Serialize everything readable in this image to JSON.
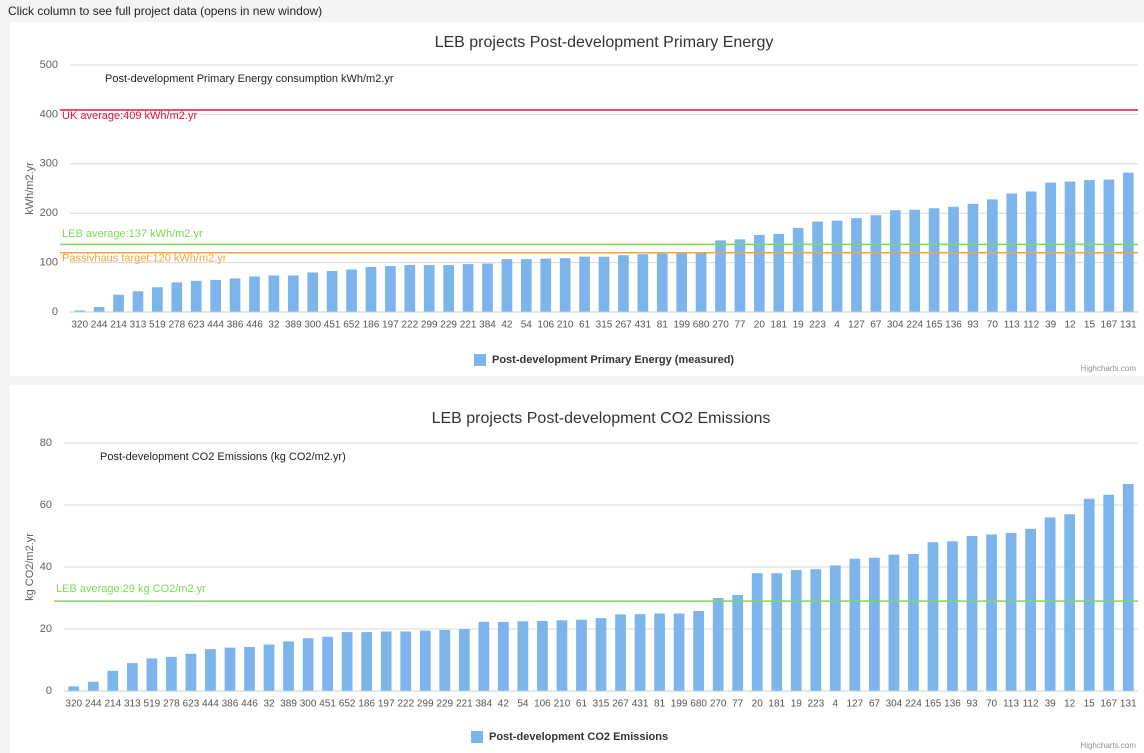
{
  "header": "Click column to see full project data (opens in new window)",
  "chart_data": [
    {
      "type": "bar",
      "title": "LEB projects Post-development Primary Energy",
      "subtitle": "Post-development Primary Energy consumption kWh/m2.yr",
      "y_label": "kWh/m2.yr",
      "credits": "Highcharts.com",
      "categories": [
        "320",
        "244",
        "214",
        "313",
        "519",
        "278",
        "623",
        "444",
        "386",
        "446",
        "32",
        "389",
        "300",
        "451",
        "652",
        "186",
        "197",
        "222",
        "299",
        "229",
        "221",
        "384",
        "42",
        "54",
        "106",
        "210",
        "61",
        "315",
        "267",
        "431",
        "81",
        "199",
        "680",
        "270",
        "77",
        "20",
        "181",
        "19",
        "223",
        "4",
        "127",
        "67",
        "304",
        "224",
        "165",
        "136",
        "93",
        "70",
        "113",
        "112",
        "39",
        "12",
        "15",
        "167",
        "131"
      ],
      "series": [
        {
          "name": "Post-development Primary Energy (measured)",
          "color": "#7cb5ec",
          "values": [
            3,
            10,
            35,
            42,
            50,
            60,
            63,
            65,
            68,
            72,
            74,
            74,
            80,
            83,
            86,
            91,
            93,
            95,
            95,
            95,
            97,
            98,
            107,
            107,
            108,
            109,
            112,
            112,
            115,
            117,
            118,
            119,
            120,
            145,
            147,
            156,
            158,
            170,
            183,
            185,
            190,
            196,
            206,
            207,
            210,
            213,
            219,
            228,
            240,
            244,
            262,
            264,
            267,
            268,
            282
          ]
        }
      ],
      "plot_lines": [
        {
          "value": 409,
          "label": "UK average:409 kWh/m2.yr",
          "color": "#e0163c"
        },
        {
          "value": 137,
          "label": "LEB average:137 kWh/m2.yr",
          "color": "#7ed85a"
        },
        {
          "value": 120,
          "label": "Passivhaus target:120 kWh/m2.yr",
          "color": "#f7a440"
        }
      ],
      "ylim": [
        0,
        500
      ],
      "yticks": [
        0,
        100,
        200,
        300,
        400,
        500
      ],
      "grid": true
    },
    {
      "type": "bar",
      "title": "LEB projects Post-development CO2 Emissions",
      "subtitle": "Post-development CO2 Emissions (kg CO2/m2.yr)",
      "y_label": "kg CO2/m2.yr",
      "credits": "Highcharts.com",
      "categories": [
        "320",
        "244",
        "214",
        "313",
        "519",
        "278",
        "623",
        "444",
        "386",
        "446",
        "32",
        "389",
        "300",
        "451",
        "652",
        "186",
        "197",
        "222",
        "299",
        "229",
        "221",
        "384",
        "42",
        "54",
        "106",
        "210",
        "61",
        "315",
        "267",
        "431",
        "81",
        "199",
        "680",
        "270",
        "77",
        "20",
        "181",
        "19",
        "223",
        "4",
        "127",
        "67",
        "304",
        "224",
        "165",
        "136",
        "93",
        "70",
        "113",
        "112",
        "39",
        "12",
        "15",
        "167",
        "131"
      ],
      "series": [
        {
          "name": "Post-development CO2 Emissions",
          "color": "#7cb5ec",
          "values": [
            1.5,
            3,
            6.5,
            9,
            10.5,
            11,
            12,
            13.5,
            14,
            14.2,
            15,
            16,
            17,
            17.5,
            19,
            19,
            19.2,
            19.2,
            19.5,
            19.7,
            20,
            22.3,
            22.3,
            22.5,
            22.6,
            22.8,
            23,
            23.5,
            24.7,
            24.8,
            25,
            25,
            25.8,
            30,
            31,
            38,
            38,
            39,
            39.3,
            40.5,
            42.7,
            43,
            44,
            44.2,
            48,
            48.3,
            50,
            50.5,
            51,
            52.3,
            56,
            57,
            62,
            63.3,
            66.8
          ]
        }
      ],
      "plot_lines": [
        {
          "value": 29,
          "label": "LEB average:29 kg CO2/m2.yr",
          "color": "#7ed85a"
        }
      ],
      "ylim": [
        0,
        80
      ],
      "yticks": [
        0,
        20,
        40,
        60,
        80
      ],
      "grid": true
    }
  ]
}
